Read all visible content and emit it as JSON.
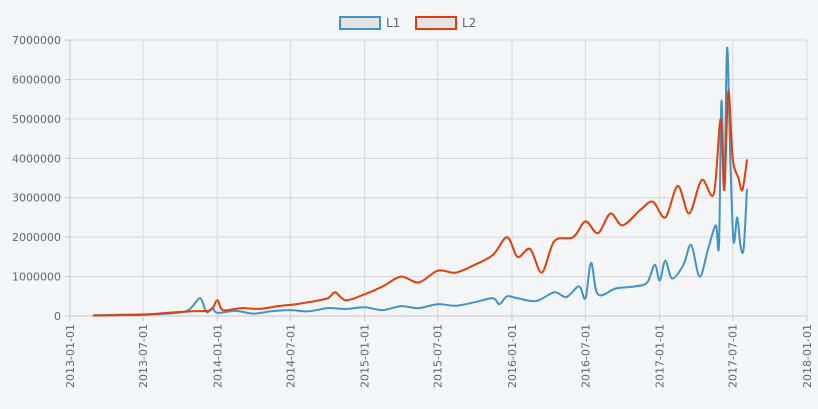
{
  "chart_data": {
    "type": "line",
    "title": "",
    "xlabel": "",
    "ylabel": "",
    "ylim": [
      0,
      7000000
    ],
    "xlim": [
      "2013-01-01",
      "2018-01-01"
    ],
    "grid": true,
    "legend_position": "top-center",
    "y_ticks": [
      "0",
      "1000000",
      "2000000",
      "3000000",
      "4000000",
      "5000000",
      "6000000",
      "7000000"
    ],
    "x_ticks": [
      "2013-01-01",
      "2013-07-01",
      "2014-01-01",
      "2014-07-01",
      "2015-01-01",
      "2015-07-01",
      "2016-01-01",
      "2016-07-01",
      "2017-01-01",
      "2017-07-01",
      "2018-01-01"
    ],
    "series": [
      {
        "name": "L1",
        "color": "#4393c3",
        "points": [
          [
            "2013-03-01",
            20000
          ],
          [
            "2013-05-01",
            30000
          ],
          [
            "2013-07-01",
            40000
          ],
          [
            "2013-09-01",
            60000
          ],
          [
            "2013-10-15",
            120000
          ],
          [
            "2013-11-01",
            250000
          ],
          [
            "2013-11-20",
            450000
          ],
          [
            "2013-12-05",
            100000
          ],
          [
            "2013-12-20",
            200000
          ],
          [
            "2014-01-01",
            80000
          ],
          [
            "2014-02-15",
            130000
          ],
          [
            "2014-04-01",
            60000
          ],
          [
            "2014-05-15",
            120000
          ],
          [
            "2014-07-01",
            150000
          ],
          [
            "2014-08-15",
            120000
          ],
          [
            "2014-10-01",
            200000
          ],
          [
            "2014-11-15",
            180000
          ],
          [
            "2015-01-01",
            220000
          ],
          [
            "2015-02-15",
            150000
          ],
          [
            "2015-04-01",
            250000
          ],
          [
            "2015-05-15",
            200000
          ],
          [
            "2015-07-01",
            300000
          ],
          [
            "2015-08-15",
            260000
          ],
          [
            "2015-10-01",
            350000
          ],
          [
            "2015-11-15",
            450000
          ],
          [
            "2015-12-01",
            300000
          ],
          [
            "2015-12-20",
            500000
          ],
          [
            "2016-01-15",
            450000
          ],
          [
            "2016-03-01",
            380000
          ],
          [
            "2016-04-15",
            600000
          ],
          [
            "2016-05-15",
            480000
          ],
          [
            "2016-06-15",
            750000
          ],
          [
            "2016-07-01",
            450000
          ],
          [
            "2016-07-15",
            1350000
          ],
          [
            "2016-08-01",
            550000
          ],
          [
            "2016-09-15",
            700000
          ],
          [
            "2016-11-01",
            750000
          ],
          [
            "2016-12-01",
            850000
          ],
          [
            "2016-12-20",
            1300000
          ],
          [
            "2017-01-01",
            900000
          ],
          [
            "2017-01-15",
            1400000
          ],
          [
            "2017-02-01",
            950000
          ],
          [
            "2017-03-01",
            1300000
          ],
          [
            "2017-03-20",
            1800000
          ],
          [
            "2017-04-10",
            1000000
          ],
          [
            "2017-05-01",
            1700000
          ],
          [
            "2017-05-20",
            2300000
          ],
          [
            "2017-05-28",
            1800000
          ],
          [
            "2017-06-03",
            5450000
          ],
          [
            "2017-06-10",
            3200000
          ],
          [
            "2017-06-17",
            6800000
          ],
          [
            "2017-06-25",
            4000000
          ],
          [
            "2017-07-03",
            1900000
          ],
          [
            "2017-07-12",
            2500000
          ],
          [
            "2017-07-20",
            1800000
          ],
          [
            "2017-07-28",
            1700000
          ],
          [
            "2017-08-05",
            3200000
          ]
        ]
      },
      {
        "name": "L2",
        "color": "#e0400e",
        "points": [
          [
            "2013-03-01",
            10000
          ],
          [
            "2013-05-01",
            20000
          ],
          [
            "2013-07-01",
            30000
          ],
          [
            "2013-09-01",
            80000
          ],
          [
            "2013-11-01",
            120000
          ],
          [
            "2013-12-15",
            150000
          ],
          [
            "2014-01-01",
            400000
          ],
          [
            "2014-01-15",
            150000
          ],
          [
            "2014-03-01",
            200000
          ],
          [
            "2014-04-15",
            180000
          ],
          [
            "2014-06-01",
            250000
          ],
          [
            "2014-07-15",
            300000
          ],
          [
            "2014-08-15",
            350000
          ],
          [
            "2014-10-01",
            450000
          ],
          [
            "2014-10-20",
            600000
          ],
          [
            "2014-11-15",
            400000
          ],
          [
            "2015-01-01",
            550000
          ],
          [
            "2015-02-15",
            750000
          ],
          [
            "2015-04-01",
            1000000
          ],
          [
            "2015-05-15",
            850000
          ],
          [
            "2015-07-01",
            1150000
          ],
          [
            "2015-08-15",
            1100000
          ],
          [
            "2015-10-01",
            1300000
          ],
          [
            "2015-11-15",
            1550000
          ],
          [
            "2015-12-20",
            2000000
          ],
          [
            "2016-01-15",
            1500000
          ],
          [
            "2016-02-15",
            1700000
          ],
          [
            "2016-03-15",
            1100000
          ],
          [
            "2016-04-15",
            1900000
          ],
          [
            "2016-06-01",
            2000000
          ],
          [
            "2016-07-01",
            2400000
          ],
          [
            "2016-08-01",
            2100000
          ],
          [
            "2016-09-01",
            2600000
          ],
          [
            "2016-10-01",
            2300000
          ],
          [
            "2016-11-15",
            2700000
          ],
          [
            "2016-12-15",
            2900000
          ],
          [
            "2017-01-15",
            2500000
          ],
          [
            "2017-02-15",
            3300000
          ],
          [
            "2017-03-15",
            2600000
          ],
          [
            "2017-04-15",
            3450000
          ],
          [
            "2017-05-15",
            3100000
          ],
          [
            "2017-06-01",
            5000000
          ],
          [
            "2017-06-10",
            3200000
          ],
          [
            "2017-06-20",
            5700000
          ],
          [
            "2017-07-01",
            4000000
          ],
          [
            "2017-07-15",
            3500000
          ],
          [
            "2017-07-25",
            3200000
          ],
          [
            "2017-08-05",
            3950000
          ]
        ]
      }
    ]
  }
}
